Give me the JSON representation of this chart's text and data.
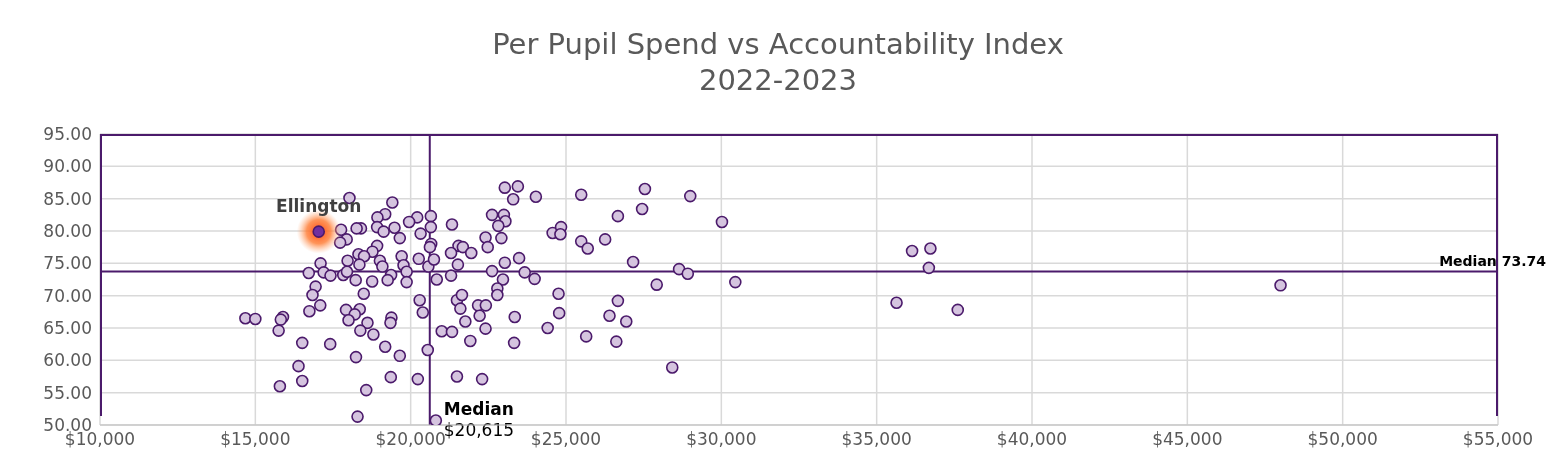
{
  "chart_data": {
    "type": "scatter",
    "title": "Per Pupil Spend vs Accountability Index",
    "subtitle": "2022-2023",
    "xlim": [
      10000,
      55000
    ],
    "xticks": [
      {
        "value": 10000,
        "label": "$10,000"
      },
      {
        "value": 15000,
        "label": "$15,000"
      },
      {
        "value": 20000,
        "label": "$20,000"
      },
      {
        "value": 25000,
        "label": "$25,000"
      },
      {
        "value": 30000,
        "label": "$30,000"
      },
      {
        "value": 35000,
        "label": "$35,000"
      },
      {
        "value": 40000,
        "label": "$40,000"
      },
      {
        "value": 45000,
        "label": "$45,000"
      },
      {
        "value": 50000,
        "label": "$50,000"
      },
      {
        "value": 55000,
        "label": "$55,000"
      }
    ],
    "ylim": [
      50,
      95
    ],
    "yticks": [
      {
        "value": 50,
        "label": "50.00"
      },
      {
        "value": 55,
        "label": "55.00"
      },
      {
        "value": 60,
        "label": "60.00"
      },
      {
        "value": 65,
        "label": "65.00"
      },
      {
        "value": 70,
        "label": "70.00"
      },
      {
        "value": 75,
        "label": "75.00"
      },
      {
        "value": 80,
        "label": "80.00"
      },
      {
        "value": 85,
        "label": "85.00"
      },
      {
        "value": 90,
        "label": "90.00"
      },
      {
        "value": 95,
        "label": "95.00"
      }
    ],
    "grid": true,
    "marker": "circle",
    "series": [
      {
        "color": "#d5c4df",
        "x": [
          18030,
          19410,
          19180,
          18930,
          20650,
          20210,
          19950,
          17760,
          17940,
          17730,
          18400,
          18260,
          18920,
          19130,
          19480,
          19650,
          20320,
          20650,
          20660,
          20620,
          18920,
          18770,
          18320,
          18500,
          17970,
          18350,
          18230,
          17100,
          16720,
          17200,
          17420,
          17830,
          17950,
          19010,
          19090,
          19370,
          19260,
          19710,
          19770,
          19870,
          19870,
          20260,
          20570,
          20750,
          20840,
          18760,
          16940,
          16840,
          17090,
          16740,
          18490,
          14680,
          15000,
          15890,
          15820,
          15750,
          17920,
          18360,
          18200,
          18000,
          18610,
          18380,
          18800,
          19380,
          19350,
          20290,
          20390,
          16510,
          17410,
          19180,
          18240,
          19650,
          20550,
          16390,
          16510,
          15790,
          19360,
          20230,
          18570,
          18290,
          20810,
          23030,
          23450,
          23300,
          24030,
          25490,
          27540,
          27450,
          29000,
          26670,
          30020,
          21330,
          22620,
          23000,
          23050,
          22820,
          22410,
          22920,
          22480,
          21540,
          21680,
          21300,
          21950,
          24570,
          24840,
          24820,
          25490,
          25700,
          26260,
          27160,
          23490,
          23030,
          21520,
          21300,
          22620,
          22970,
          23670,
          23990,
          28640,
          28920,
          27920,
          30450,
          22790,
          22790,
          21490,
          21650,
          21600,
          24760,
          24780,
          26670,
          26400,
          26940,
          22170,
          22420,
          22220,
          21760,
          22410,
          23350,
          21000,
          21330,
          24410,
          21920,
          23330,
          25650,
          26620,
          28420,
          21490,
          22300,
          36140,
          36730,
          36680,
          35640,
          37610,
          48000
        ],
        "values": [
          85.1,
          84.4,
          82.6,
          82.1,
          82.3,
          82.1,
          81.4,
          80.2,
          78.7,
          78.2,
          80.4,
          80.4,
          80.6,
          79.9,
          80.5,
          78.9,
          79.6,
          80.6,
          78.0,
          77.5,
          77.7,
          76.8,
          76.4,
          76.1,
          75.4,
          74.8,
          72.4,
          75.0,
          73.5,
          73.6,
          73.1,
          73.2,
          73.7,
          75.4,
          74.5,
          73.2,
          72.4,
          76.1,
          74.7,
          73.7,
          72.1,
          75.7,
          74.5,
          75.6,
          72.5,
          72.2,
          71.4,
          70.1,
          68.5,
          67.6,
          70.3,
          66.5,
          66.4,
          66.7,
          66.3,
          64.6,
          67.8,
          67.9,
          67.1,
          66.2,
          65.8,
          64.6,
          64.0,
          66.6,
          65.8,
          69.3,
          67.4,
          62.7,
          62.5,
          62.1,
          60.5,
          60.7,
          61.6,
          59.1,
          56.8,
          56.0,
          57.4,
          57.1,
          55.4,
          51.3,
          50.7,
          86.7,
          86.9,
          84.9,
          85.3,
          85.6,
          86.5,
          83.4,
          85.4,
          82.3,
          81.4,
          81.0,
          82.5,
          82.5,
          81.5,
          80.8,
          79.0,
          78.9,
          77.5,
          77.7,
          77.5,
          76.6,
          76.6,
          79.7,
          80.6,
          79.5,
          78.4,
          77.3,
          78.7,
          75.2,
          75.8,
          75.1,
          74.8,
          73.1,
          73.8,
          72.5,
          73.6,
          72.6,
          74.1,
          73.4,
          71.7,
          72.1,
          71.1,
          70.1,
          69.3,
          70.1,
          68.0,
          70.3,
          67.3,
          69.2,
          66.9,
          66.0,
          68.5,
          68.5,
          66.9,
          66.0,
          64.9,
          66.7,
          64.5,
          64.4,
          65.0,
          63.0,
          62.7,
          63.7,
          62.9,
          58.9,
          57.5,
          57.1,
          76.9,
          77.3,
          74.3,
          68.9,
          67.8,
          71.6
        ]
      },
      {
        "color": "#7030a0",
        "x": [
          17040
        ],
        "values": [
          79.9
        ]
      }
    ],
    "ref_lines": [
      {
        "axis": "x",
        "value": 20615,
        "label": "Median $20,615",
        "color": "#4b1a6b"
      },
      {
        "axis": "y",
        "value": 73.74,
        "label": "Median 73.74",
        "color": "#4b1a6b"
      }
    ],
    "annotations": [
      {
        "text": "Ellington",
        "x": 17040,
        "y": 79.9
      }
    ]
  }
}
